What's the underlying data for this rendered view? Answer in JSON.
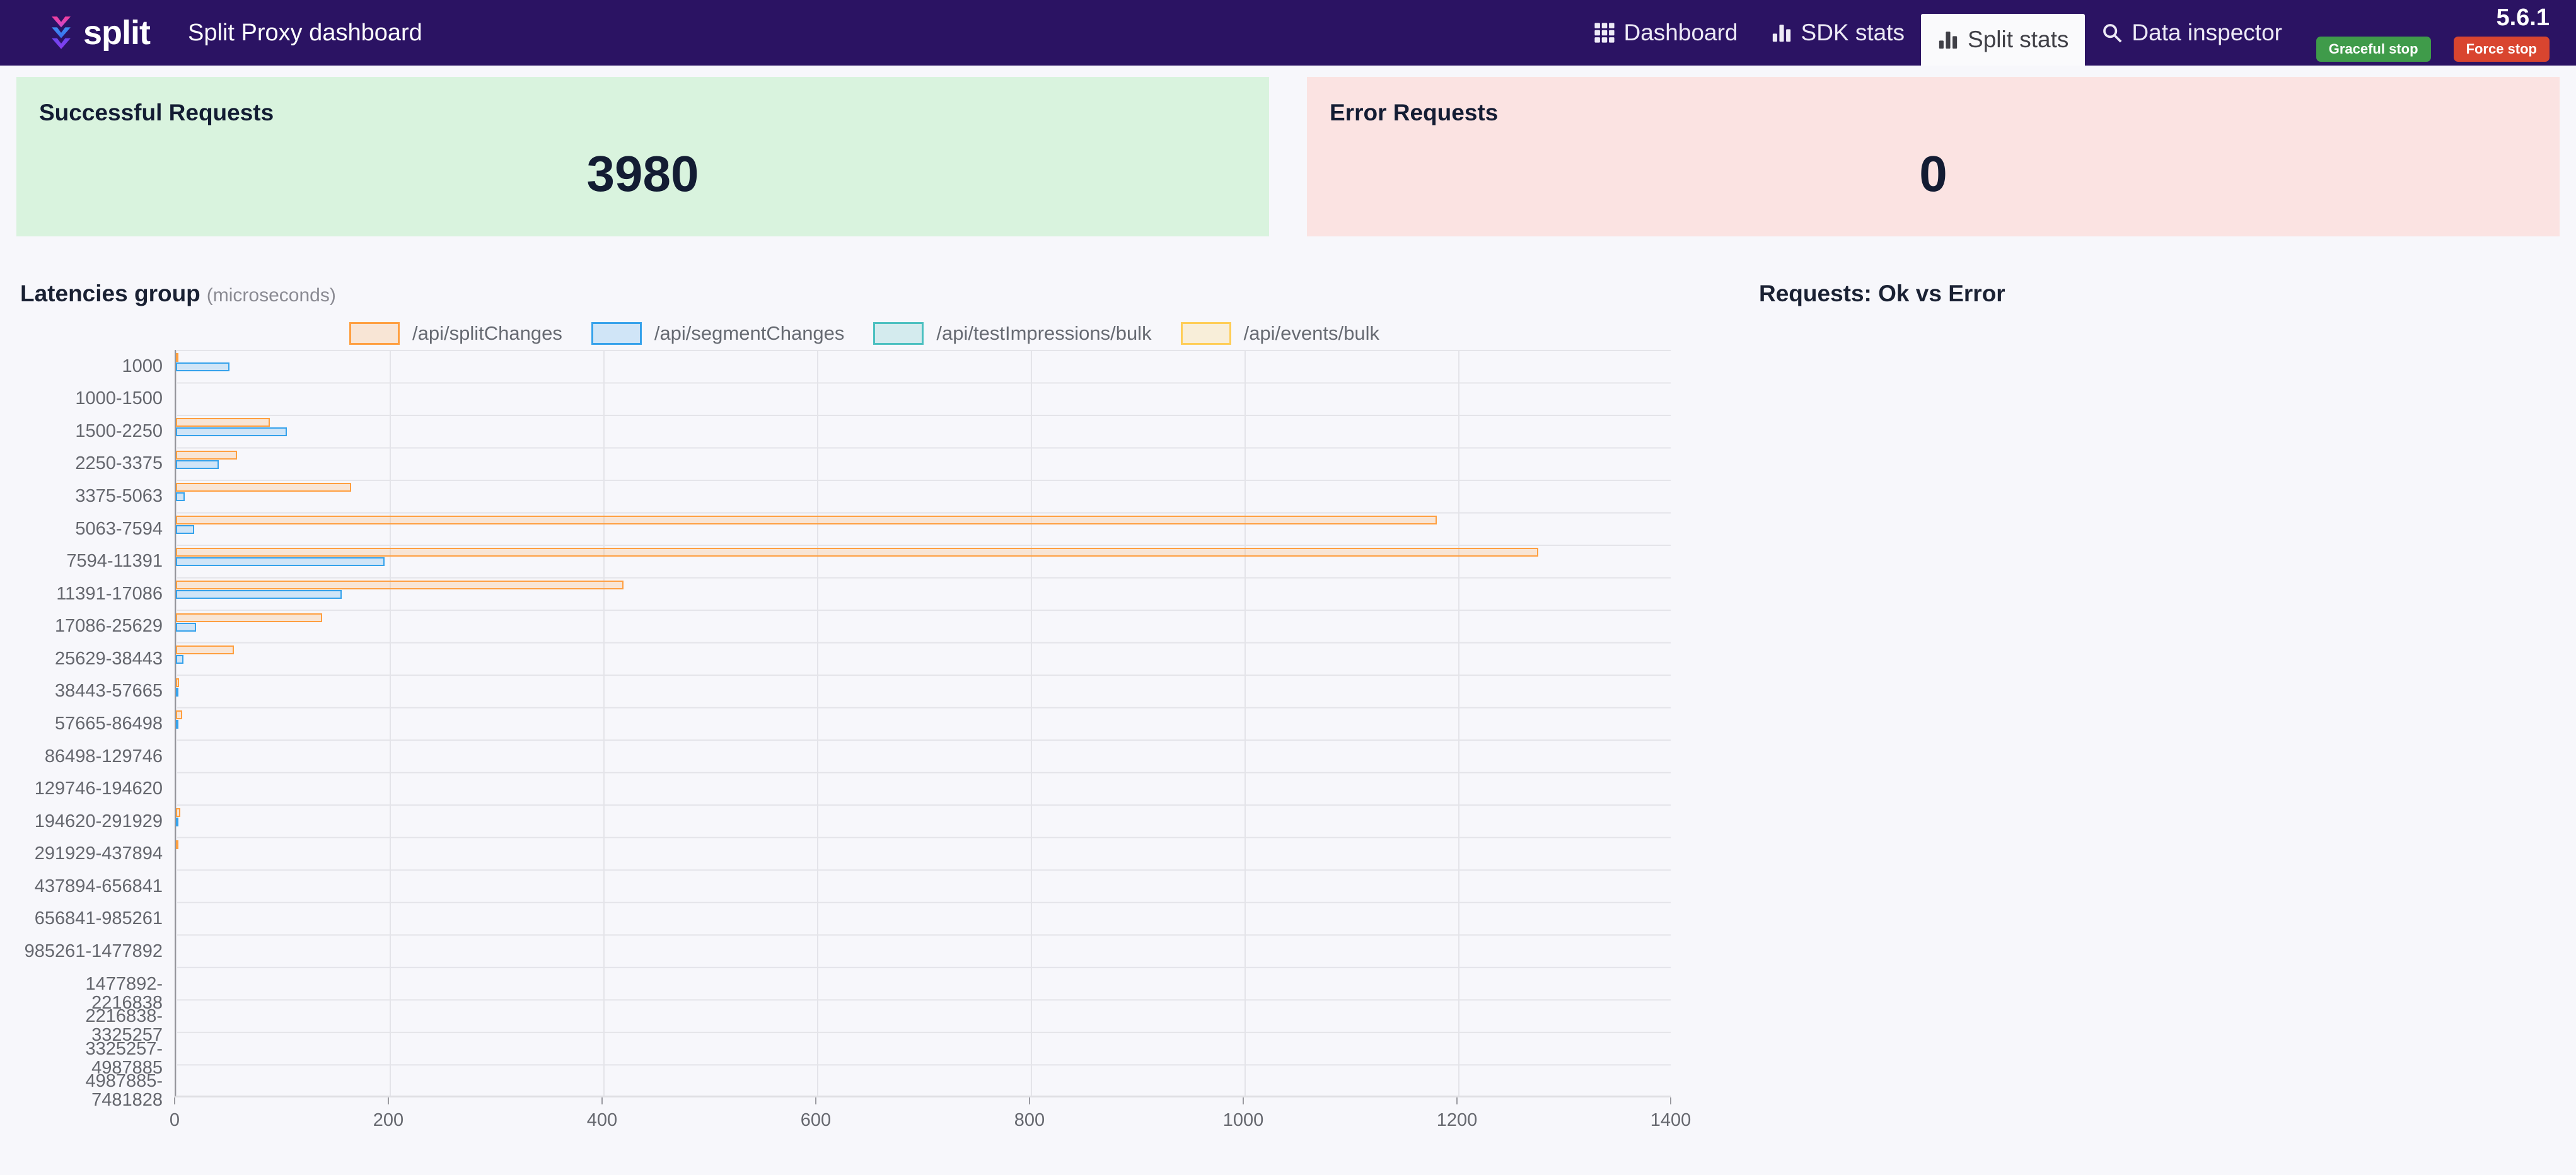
{
  "header": {
    "brand": "split",
    "title": "Split Proxy dashboard",
    "version": "5.6.1",
    "nav": [
      {
        "label": "Dashboard",
        "icon": "grid-icon",
        "active": false
      },
      {
        "label": "SDK stats",
        "icon": "bar-chart-icon",
        "active": false
      },
      {
        "label": "Split stats",
        "icon": "bar-chart-icon",
        "active": true
      },
      {
        "label": "Data inspector",
        "icon": "search-icon",
        "active": false
      }
    ],
    "buttons": [
      {
        "label": "Graceful stop",
        "color": "#3f9b4a"
      },
      {
        "label": "Force stop",
        "color": "#d9452f"
      }
    ]
  },
  "cards": [
    {
      "title": "Successful Requests",
      "value": "3980",
      "bg": "#d9f3de"
    },
    {
      "title": "Error Requests",
      "value": "0",
      "bg": "#fbe3e2"
    }
  ],
  "sections": {
    "latencies": {
      "title": "Latencies group",
      "subtitle": "(microseconds)"
    },
    "requests": {
      "title": "Requests: Ok vs Error"
    }
  },
  "chart_data": {
    "type": "bar",
    "orientation": "horizontal",
    "title": "Latencies group (microseconds)",
    "grid": true,
    "legend_position": "top",
    "xlim": [
      0,
      1400
    ],
    "x_ticks": [
      0,
      200,
      400,
      600,
      800,
      1000,
      1200,
      1400
    ],
    "categories": [
      "1000",
      "1000-1500",
      "1500-2250",
      "2250-3375",
      "3375-5063",
      "5063-7594",
      "7594-11391",
      "11391-17086",
      "17086-25629",
      "25629-38443",
      "38443-57665",
      "57665-86498",
      "86498-129746",
      "129746-194620",
      "194620-291929",
      "291929-437894",
      "437894-656841",
      "656841-985261",
      "985261-1477892",
      "1477892-2216838",
      "2216838-3325257",
      "3325257-4987885",
      "4987885-7481828"
    ],
    "series": [
      {
        "name": "/api/splitChanges",
        "color": "#ff9f40",
        "fill": "rgba(255,159,64,0.2)",
        "values": [
          2,
          0,
          88,
          57,
          164,
          1180,
          1275,
          419,
          137,
          54,
          3,
          6,
          0,
          0,
          4,
          2,
          0,
          0,
          0,
          0,
          0,
          0,
          0
        ]
      },
      {
        "name": "/api/segmentChanges",
        "color": "#36a2eb",
        "fill": "rgba(54,162,235,0.2)",
        "values": [
          50,
          0,
          104,
          40,
          8,
          17,
          195,
          155,
          19,
          7,
          1,
          2,
          0,
          0,
          2,
          0,
          0,
          0,
          0,
          0,
          0,
          0,
          0
        ]
      },
      {
        "name": "/api/testImpressions/bulk",
        "color": "#4bc0c0",
        "fill": "rgba(75,192,192,0.2)",
        "values": [
          0,
          0,
          0,
          0,
          0,
          0,
          0,
          0,
          0,
          0,
          0,
          0,
          0,
          0,
          0,
          0,
          0,
          0,
          0,
          0,
          0,
          0,
          0
        ]
      },
      {
        "name": "/api/events/bulk",
        "color": "#ffcd56",
        "fill": "rgba(255,205,86,0.2)",
        "values": [
          0,
          0,
          0,
          0,
          0,
          0,
          0,
          0,
          0,
          0,
          0,
          0,
          0,
          0,
          0,
          0,
          0,
          0,
          0,
          0,
          0,
          0,
          0
        ]
      }
    ]
  }
}
